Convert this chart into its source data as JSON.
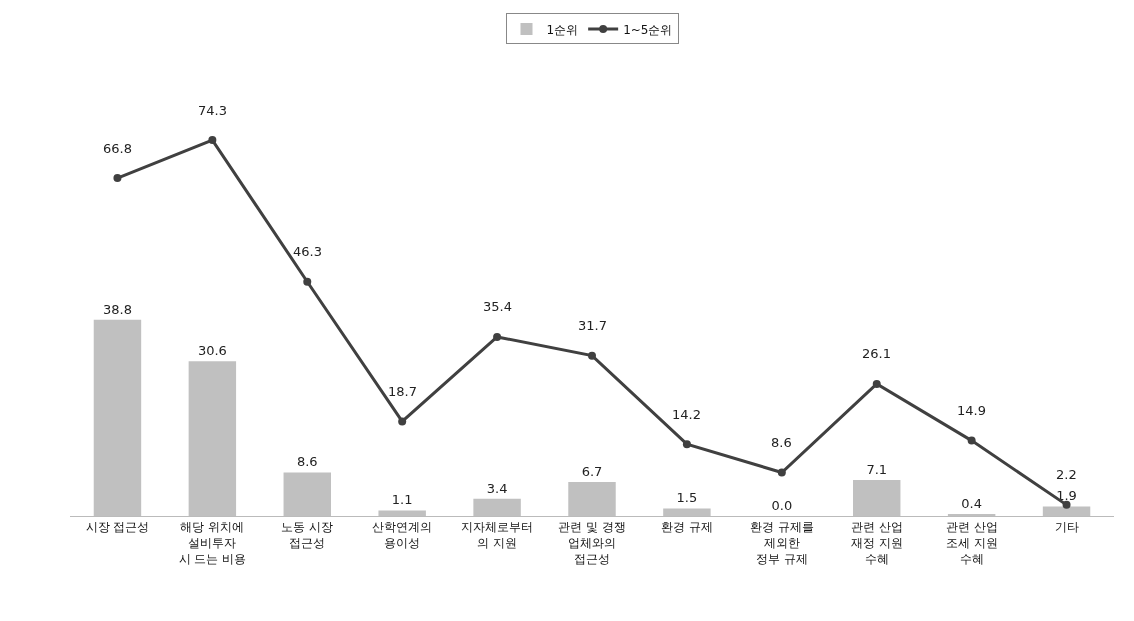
{
  "chart_data": {
    "type": "bar",
    "categories": [
      "시장 접근성",
      "해당 위치에\n설비투자\n시 드는 비용",
      "노동 시장\n접근성",
      "산학연계의\n용이성",
      "지자체로부터\n의 지원",
      "관련 및 경쟁\n업체와의\n접근성",
      "환경 규제",
      "환경 규제를\n제외한\n정부 규제",
      "관련 산업\n재정 지원\n수혜",
      "관련 산업\n조세 지원\n수혜",
      "기타"
    ],
    "series": [
      {
        "name": "1순위",
        "color": "#c0c0c0",
        "values": [
          38.8,
          30.6,
          8.6,
          1.1,
          3.4,
          6.7,
          1.5,
          0.0,
          7.1,
          0.4,
          1.9
        ],
        "value_labels": [
          "38.8",
          "30.6",
          "8.6",
          "1.1",
          "3.4",
          "6.7",
          "1.5",
          "0.0",
          "7.1",
          "0.4",
          "1.9"
        ]
      },
      {
        "name": "1~5순위",
        "type": "line",
        "color": "#404040",
        "marker": "circle",
        "values": [
          66.8,
          74.3,
          46.3,
          18.7,
          35.4,
          31.7,
          14.2,
          8.6,
          26.1,
          14.9,
          2.2
        ],
        "value_labels": [
          "66.8",
          "74.3",
          "46.3",
          "18.7",
          "35.4",
          "31.7",
          "14.2",
          "8.6",
          "26.1",
          "14.9",
          "2.2"
        ]
      }
    ],
    "legend": "top",
    "grid": false
  }
}
